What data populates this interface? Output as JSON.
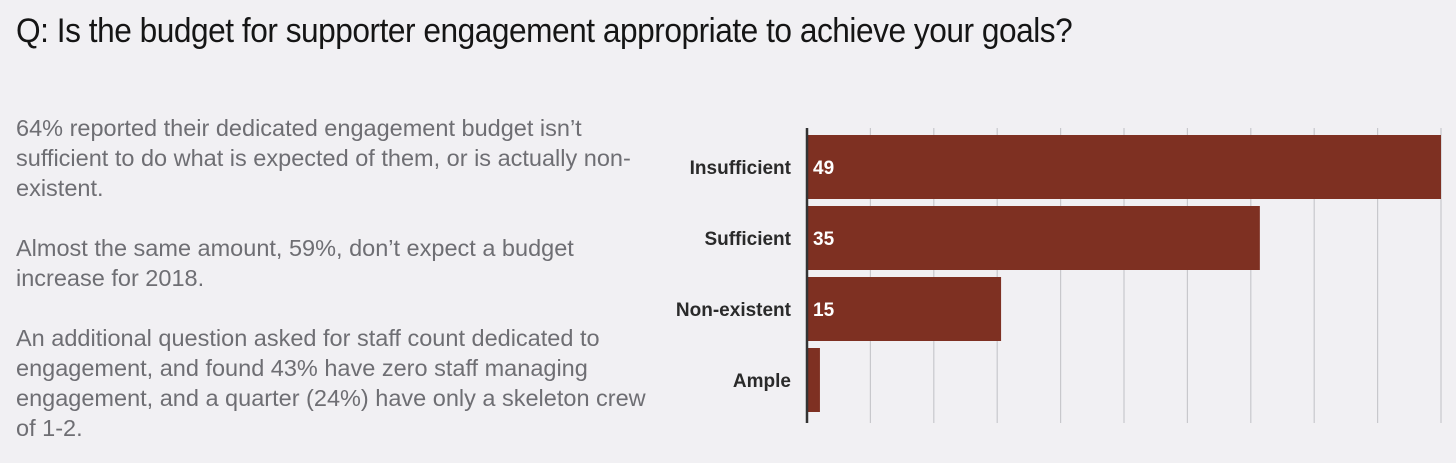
{
  "question": "Q: Is the budget for supporter engagement appropriate to achieve your goals?",
  "summary": {
    "paragraphs": [
      "64% reported their dedicated engagement budget isn’t sufficient to do what is expected of them, or is actually non-existent.",
      "Almost the same amount, 59%, don’t expect a budget increase for 2018.",
      "An additional question asked for staff count dedicated to engagement, and found 43% have zero staff managing engagement, and a quarter (24%) have only a skeleton crew of 1-2."
    ]
  },
  "chart_data": {
    "type": "bar",
    "orientation": "horizontal",
    "categories": [
      "Insufficient",
      "Sufficient",
      "Non-existent",
      "Ample"
    ],
    "values": [
      49,
      35,
      15,
      1
    ],
    "data_labels": [
      "49",
      "35",
      "15",
      ""
    ],
    "xlim": [
      0,
      49
    ],
    "grid": true,
    "legend": "none",
    "bar_color": "#7e3022",
    "label_color": "#ffffff",
    "grid_color": "#c8c8cc",
    "axis_color": "#333333",
    "category_label_color": "#2a2a2a"
  }
}
